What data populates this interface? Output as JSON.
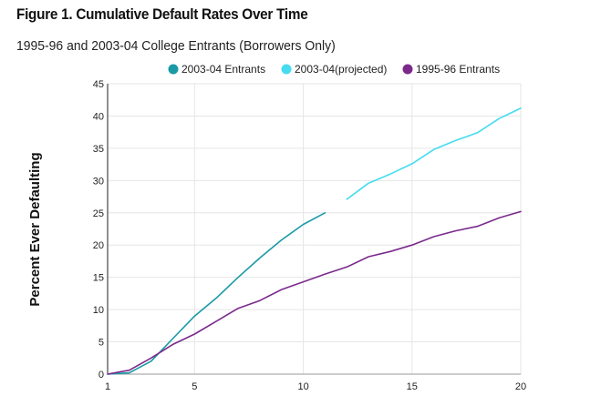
{
  "chart_data": {
    "type": "line",
    "title": "Figure 1. Cumulative Default Rates Over Time",
    "subtitle": "1995-96 and 2003-04 College Entrants (Borrowers Only)",
    "xlabel": "",
    "ylabel": "Percent Ever Defaulting",
    "xlim": [
      1,
      20
    ],
    "ylim": [
      0,
      45
    ],
    "x_ticks": [
      1,
      5,
      10,
      15,
      20
    ],
    "y_ticks": [
      0,
      5,
      10,
      15,
      20,
      25,
      30,
      35,
      40,
      45
    ],
    "grid": true,
    "legend_position": "top",
    "series": [
      {
        "name": "2003-04 Entrants",
        "color": "#1a9aa6",
        "x": [
          1,
          2,
          3,
          4,
          5,
          6,
          7,
          8,
          9,
          10,
          11
        ],
        "values": [
          0,
          0.2,
          2,
          5.5,
          9,
          11.8,
          15,
          18,
          20.8,
          23.2,
          25
        ]
      },
      {
        "name": "2003-04(projected)",
        "color": "#45dcef",
        "x": [
          12,
          13,
          14,
          15,
          16,
          17,
          18,
          19,
          20
        ],
        "values": [
          27.1,
          29.6,
          31,
          32.6,
          34.8,
          36.2,
          37.4,
          39.6,
          41.2
        ]
      },
      {
        "name": "1995-96 Entrants",
        "color": "#7b2a8c",
        "x": [
          1,
          2,
          3,
          4,
          5,
          6,
          7,
          8,
          9,
          10,
          11,
          12,
          13,
          14,
          15,
          16,
          17,
          18,
          19,
          20
        ],
        "values": [
          0,
          0.6,
          2.5,
          4.6,
          6.2,
          8.2,
          10.2,
          11.4,
          13.1,
          14.3,
          15.5,
          16.6,
          18.2,
          19,
          20,
          21.3,
          22.2,
          22.9,
          24.2,
          25.2
        ]
      }
    ]
  }
}
